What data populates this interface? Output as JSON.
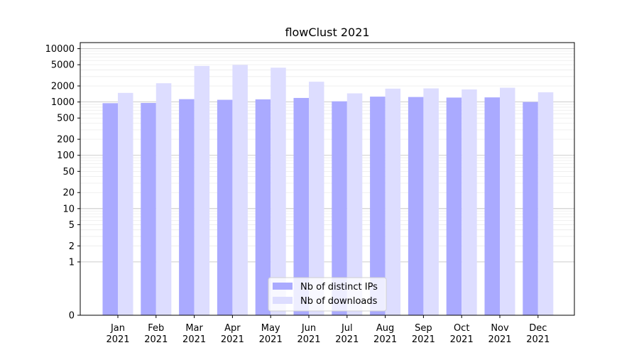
{
  "chart_data": {
    "type": "bar",
    "title": "flowClust 2021",
    "xlabel": "",
    "ylabel": "",
    "y_scale": "symlog",
    "ylim": [
      0,
      13000
    ],
    "y_ticks": [
      0,
      1,
      2,
      5,
      10,
      20,
      50,
      100,
      200,
      500,
      1000,
      2000,
      5000,
      10000
    ],
    "categories": [
      {
        "month": "Jan",
        "year": "2021"
      },
      {
        "month": "Feb",
        "year": "2021"
      },
      {
        "month": "Mar",
        "year": "2021"
      },
      {
        "month": "Apr",
        "year": "2021"
      },
      {
        "month": "May",
        "year": "2021"
      },
      {
        "month": "Jun",
        "year": "2021"
      },
      {
        "month": "Jul",
        "year": "2021"
      },
      {
        "month": "Aug",
        "year": "2021"
      },
      {
        "month": "Sep",
        "year": "2021"
      },
      {
        "month": "Oct",
        "year": "2021"
      },
      {
        "month": "Nov",
        "year": "2021"
      },
      {
        "month": "Dec",
        "year": "2021"
      }
    ],
    "series": [
      {
        "name": "Nb of distinct IPs",
        "color": "#aaaaff",
        "values": [
          950,
          960,
          1130,
          1100,
          1120,
          1190,
          1030,
          1260,
          1240,
          1210,
          1220,
          1000
        ]
      },
      {
        "name": "Nb of downloads",
        "color": "#ddddff",
        "values": [
          1480,
          2250,
          4750,
          4950,
          4400,
          2400,
          1450,
          1780,
          1800,
          1720,
          1850,
          1520
        ]
      }
    ],
    "grid": true,
    "legend_position": "lower center"
  }
}
